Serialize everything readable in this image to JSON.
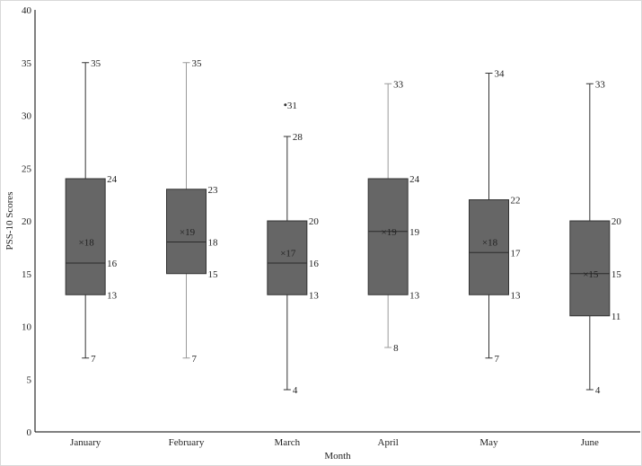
{
  "chart_data": {
    "type": "box",
    "xlabel": "Month",
    "ylabel": "PSS-10 Scores",
    "ylim": [
      0,
      40
    ],
    "yticks": [
      0,
      5,
      10,
      15,
      20,
      25,
      30,
      35,
      40
    ],
    "grid": false,
    "colors": {
      "box_fill": "#666666",
      "box_stroke": "#333333",
      "whisker": "#333333",
      "whisker_light": "#999999"
    },
    "categories": [
      "January",
      "February",
      "March",
      "April",
      "May",
      "June"
    ],
    "boxes": [
      {
        "category": "January",
        "min": 7,
        "q1": 13,
        "median": 16,
        "q3": 24,
        "max": 35,
        "mean": 18,
        "outliers": []
      },
      {
        "category": "February",
        "min": 7,
        "q1": 15,
        "median": 18,
        "q3": 23,
        "max": 35,
        "mean": 19,
        "outliers": []
      },
      {
        "category": "March",
        "min": 4,
        "q1": 13,
        "median": 16,
        "q3": 20,
        "max": 28,
        "mean": 17,
        "outliers": [
          31
        ]
      },
      {
        "category": "April",
        "min": 8,
        "q1": 13,
        "median": 19,
        "q3": 24,
        "max": 33,
        "mean": 19,
        "outliers": []
      },
      {
        "category": "May",
        "min": 7,
        "q1": 13,
        "median": 17,
        "q3": 22,
        "max": 34,
        "mean": 18,
        "outliers": []
      },
      {
        "category": "June",
        "min": 4,
        "q1": 11,
        "median": 15,
        "q3": 20,
        "max": 33,
        "mean": 15,
        "outliers": []
      }
    ]
  }
}
